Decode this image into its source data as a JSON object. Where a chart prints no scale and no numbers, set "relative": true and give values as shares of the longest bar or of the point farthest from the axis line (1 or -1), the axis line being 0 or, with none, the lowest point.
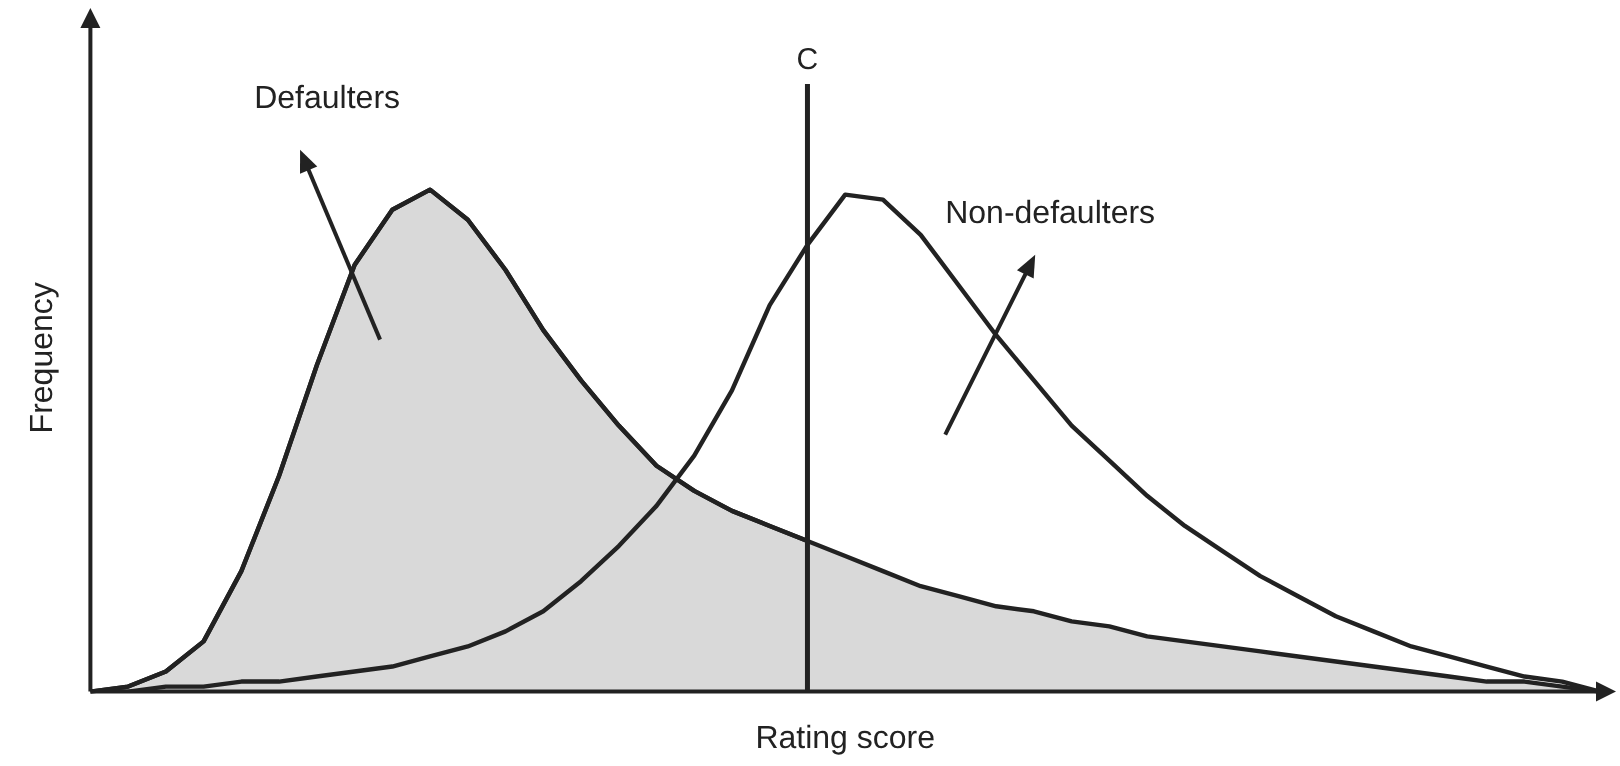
{
  "chart_data": {
    "type": "line",
    "relative": true,
    "xlabel": "Rating score",
    "ylabel": "Frequency",
    "grid": false,
    "legend": false,
    "marker": "none",
    "categories": [
      null,
      null,
      null,
      null,
      null,
      null,
      null,
      null,
      null,
      null,
      null,
      null,
      null,
      null,
      null,
      null,
      null,
      null,
      null,
      null,
      null,
      null,
      null,
      null,
      null,
      null,
      null,
      null,
      null,
      null,
      null,
      null,
      null,
      null,
      null,
      null,
      null,
      null,
      null,
      null,
      null
    ],
    "series": [
      {
        "name": "Defaulters",
        "type": "area",
        "color": "#d9d9d9",
        "values": [
          0,
          0.01,
          0.04,
          0.1,
          0.24,
          0.43,
          0.65,
          0.85,
          0.96,
          1,
          0.94,
          0.84,
          0.72,
          0.62,
          0.53,
          0.45,
          0.4,
          0.36,
          0.33,
          0.3,
          0.27,
          0.24,
          0.21,
          0.19,
          0.17,
          0.16,
          0.14,
          0.13,
          0.11,
          0.1,
          0.09,
          0.08,
          0.07,
          0.06,
          0.05,
          0.04,
          0.03,
          0.02,
          0.02,
          0.01,
          0
        ]
      },
      {
        "name": "Non-defaulters",
        "color": "#222222",
        "values": [
          0,
          0,
          0.01,
          0.01,
          0.02,
          0.02,
          0.03,
          0.04,
          0.05,
          0.07,
          0.09,
          0.12,
          0.16,
          0.22,
          0.29,
          0.37,
          0.47,
          0.6,
          0.77,
          0.89,
          0.99,
          0.98,
          0.91,
          0.81,
          0.71,
          0.62,
          0.53,
          0.46,
          0.39,
          0.33,
          0.28,
          0.23,
          0.19,
          0.15,
          0.12,
          0.09,
          0.07,
          0.05,
          0.03,
          0.02,
          0
        ]
      }
    ],
    "annotations": [
      "C"
    ]
  }
}
